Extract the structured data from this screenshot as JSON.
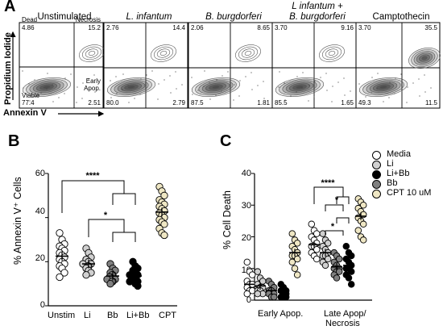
{
  "figure": {
    "panel_letters": [
      "A",
      "B",
      "C"
    ],
    "panelA": {
      "y_axis_label": "Propidium Iodide",
      "x_axis_label": "Annexin V",
      "plots": [
        {
          "title": "Unstimulated",
          "title_italic": false,
          "q_ul": "4.86",
          "q_ur": "15.2",
          "q_ll": "77.4",
          "q_lr": "2.51",
          "lbl_ul": "Dead",
          "lbl_ur": "Necrosis",
          "lbl_ll": "Viable",
          "lbl_lr1": "Early",
          "lbl_lr2": "Apop."
        },
        {
          "title": "L. infantum",
          "title_italic": true,
          "q_ul": "2.76",
          "q_ur": "14.4",
          "q_ll": "80.0",
          "q_lr": "2.79"
        },
        {
          "title": "B. burgdorferi",
          "title_italic": true,
          "q_ul": "2.06",
          "q_ur": "8.65",
          "q_ll": "87.5",
          "q_lr": "1.81"
        },
        {
          "title_line1": "L infantum +",
          "title_line2": "B. burgdorferi",
          "title_italic": true,
          "q_ul": "3.70",
          "q_ur": "9.16",
          "q_ll": "85.5",
          "q_lr": "1.65"
        },
        {
          "title": "Camptothecin",
          "title_italic": false,
          "q_ul": "3.70",
          "q_ur": "35.5",
          "q_ll": "49.3",
          "q_lr": "11.5"
        }
      ]
    },
    "panelB": {
      "ylabel": "% Annexin V⁺ Cells",
      "y_ticks": [
        "0",
        "20",
        "40",
        "60"
      ],
      "categories": [
        "Unstim",
        "Li",
        "Bb",
        "Li+Bb",
        "CPT"
      ],
      "sig": [
        "****",
        "*"
      ]
    },
    "panelC": {
      "ylabel": "% Cell Death",
      "y_ticks": [
        "0",
        "10",
        "20",
        "30",
        "40"
      ],
      "groups": [
        "Early Apop.",
        "Late Apop/",
        "Necrosis"
      ],
      "sig": [
        "****",
        "*",
        "*"
      ]
    },
    "legend": {
      "items": [
        "Media",
        "Li",
        "Li+Bb",
        "Bb",
        "CPT 10 uM"
      ],
      "colors": [
        "#ffffff",
        "#d0d0d0",
        "#000000",
        "#808080",
        "#efe7c4"
      ]
    }
  },
  "chart_data": [
    {
      "type": "scatter",
      "title": "",
      "ylabel": "% Annexin V⁺ Cells",
      "ylim": [
        0,
        60
      ],
      "categories": [
        "Unstim",
        "Li",
        "Bb",
        "Li+Bb",
        "CPT"
      ],
      "series": [
        {
          "name": "Unstim",
          "color": "#ffffff",
          "values": [
            33,
            30,
            28,
            27,
            26,
            25,
            24,
            23,
            22,
            21,
            20,
            19,
            18,
            17,
            15,
            13
          ],
          "mean": 22.5
        },
        {
          "name": "Li",
          "color": "#d0d0d0",
          "values": [
            26,
            24,
            22,
            21,
            20,
            19,
            19,
            18,
            18,
            17,
            16,
            15,
            14
          ],
          "mean": 19
        },
        {
          "name": "Bb",
          "color": "#808080",
          "values": [
            19,
            17,
            16,
            15,
            14,
            14,
            13,
            13,
            12,
            12,
            11,
            11,
            10
          ],
          "mean": 13.5
        },
        {
          "name": "Li+Bb",
          "color": "#000000",
          "values": [
            20,
            18,
            17,
            16,
            15,
            14,
            14,
            13,
            13,
            12,
            12,
            11,
            11,
            10,
            9
          ],
          "mean": 13.5
        },
        {
          "name": "CPT",
          "color": "#efe7c4",
          "values": [
            54,
            52,
            50,
            48,
            47,
            46,
            45,
            44,
            43,
            42,
            41,
            40,
            39,
            38,
            37,
            35,
            33,
            32
          ],
          "mean": 42.5
        }
      ],
      "significance": [
        {
          "from": "Unstim",
          "to": "Bb / Li+Bb",
          "label": "****"
        },
        {
          "from": "Li",
          "to": "Bb / Li+Bb",
          "label": "*"
        }
      ]
    },
    {
      "type": "scatter",
      "title": "",
      "ylabel": "% Cell Death",
      "ylim": [
        0,
        40
      ],
      "groups": [
        "Early Apop.",
        "Late Apop/ Necrosis"
      ],
      "series": [
        {
          "name": "Media",
          "color": "#ffffff",
          "early": [
            12,
            9,
            8,
            6,
            5,
            5,
            4,
            3,
            3,
            2
          ],
          "early_mean": 5,
          "late": [
            24,
            22,
            21,
            20,
            19,
            18,
            17,
            17,
            16,
            15,
            14,
            13
          ],
          "late_mean": 17.5
        },
        {
          "name": "Li",
          "color": "#d0d0d0",
          "early": [
            9,
            7,
            6,
            5,
            4,
            4,
            3,
            3,
            2,
            2
          ],
          "early_mean": 4.5,
          "late": [
            21,
            19,
            18,
            17,
            16,
            15,
            14,
            14,
            13,
            12,
            11
          ],
          "late_mean": 15
        },
        {
          "name": "Bb",
          "color": "#808080",
          "early": [
            6,
            5,
            4,
            3,
            3,
            2,
            2,
            1,
            1
          ],
          "early_mean": 3,
          "late": [
            15,
            14,
            13,
            12,
            11,
            10,
            10,
            9,
            9,
            8,
            7
          ],
          "late_mean": 10.5
        },
        {
          "name": "Li+Bb",
          "color": "#000000",
          "early": [
            5,
            4,
            3,
            3,
            2,
            2,
            1,
            1,
            1
          ],
          "early_mean": 2.5,
          "late": [
            17,
            15,
            14,
            13,
            12,
            11,
            10,
            10,
            9,
            8,
            7,
            5
          ],
          "late_mean": 11
        },
        {
          "name": "CPT 10 uM",
          "color": "#efe7c4",
          "early": [
            21,
            19,
            18,
            17,
            16,
            15,
            14,
            14,
            13,
            12,
            10,
            8
          ],
          "early_mean": 15,
          "late": [
            32,
            31,
            30,
            29,
            28,
            27,
            26,
            25,
            24,
            22,
            20,
            19
          ],
          "late_mean": 26.5
        }
      ],
      "significance": [
        {
          "label": "****"
        },
        {
          "label": "*"
        },
        {
          "label": "*"
        }
      ]
    }
  ]
}
